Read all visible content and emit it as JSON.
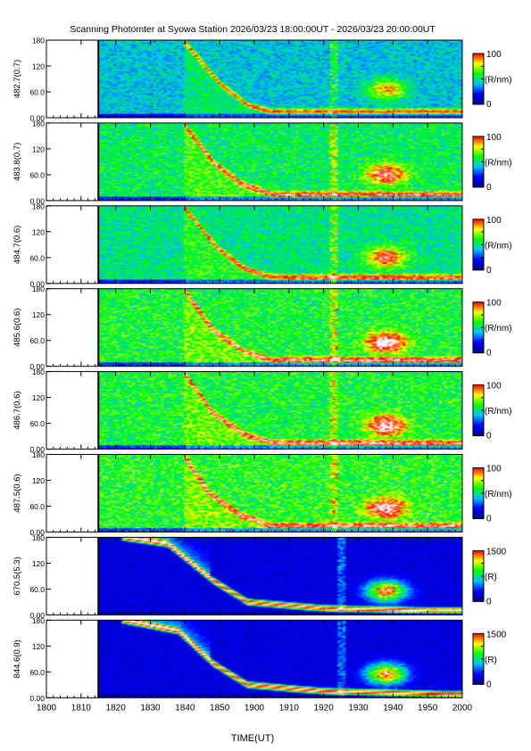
{
  "chart_data": {
    "type": "heatmap",
    "title": "Scanning Photomter at Syowa Station 2026/03/23 18:00:00UT - 2026/03/23 20:00:00UT",
    "xlabel": "TIME(UT)",
    "x_ticks": [
      "1800",
      "1810",
      "1820",
      "1830",
      "1840",
      "1850",
      "1900",
      "1910",
      "1920",
      "1930",
      "1940",
      "1950",
      "2000"
    ],
    "x_range": [
      "18:00",
      "20:00"
    ],
    "data_start": "18:15",
    "y_ticks": [
      "0.00",
      "60.0",
      "120",
      "180"
    ],
    "y_range": [
      0,
      180
    ],
    "colorscale": [
      "#000080",
      "#0000ff",
      "#00c0ff",
      "#00ff00",
      "#ffff00",
      "#ff0000",
      "#ffffff"
    ],
    "panels": [
      {
        "ylabel": "482.7(0.7)",
        "cbar_max": "100",
        "cbar_min": "0",
        "cbar_unit": "(R/nm)",
        "arc": [
          {
            "t": "18:40",
            "el": 175
          },
          {
            "t": "18:50",
            "el": 80
          },
          {
            "t": "18:58",
            "el": 30
          },
          {
            "t": "19:05",
            "el": 15
          }
        ],
        "patch": {
          "t": "19:38",
          "el": 65,
          "intensity": 0.55
        },
        "background_level": 0.35,
        "spike_time": "19:23"
      },
      {
        "ylabel": "483.8(0.7)",
        "cbar_max": "100",
        "cbar_min": "0",
        "cbar_unit": "(R/nm)",
        "arc": [
          {
            "t": "18:40",
            "el": 175
          },
          {
            "t": "18:48",
            "el": 90
          },
          {
            "t": "18:56",
            "el": 40
          },
          {
            "t": "19:05",
            "el": 15
          }
        ],
        "patch": {
          "t": "19:38",
          "el": 60,
          "intensity": 0.75
        },
        "background_level": 0.45,
        "spike_time": "19:23"
      },
      {
        "ylabel": "484.7(0.6)",
        "cbar_max": "100",
        "cbar_min": "0",
        "cbar_unit": "(R/nm)",
        "arc": [
          {
            "t": "18:40",
            "el": 175
          },
          {
            "t": "18:49",
            "el": 85
          },
          {
            "t": "18:57",
            "el": 35
          },
          {
            "t": "19:05",
            "el": 15
          }
        ],
        "patch": {
          "t": "19:38",
          "el": 60,
          "intensity": 0.65
        },
        "background_level": 0.42,
        "spike_time": "19:23"
      },
      {
        "ylabel": "485.6(0.6)",
        "cbar_max": "100",
        "cbar_min": "0",
        "cbar_unit": "(R/nm)",
        "arc": [
          {
            "t": "18:40",
            "el": 175
          },
          {
            "t": "18:48",
            "el": 85
          },
          {
            "t": "18:57",
            "el": 35
          },
          {
            "t": "19:05",
            "el": 15
          }
        ],
        "patch": {
          "t": "19:38",
          "el": 55,
          "intensity": 0.85
        },
        "background_level": 0.48,
        "spike_time": "19:23"
      },
      {
        "ylabel": "486.7(0.6)",
        "cbar_max": "100",
        "cbar_min": "0",
        "cbar_unit": "(R/nm)",
        "arc": [
          {
            "t": "18:40",
            "el": 175
          },
          {
            "t": "18:48",
            "el": 85
          },
          {
            "t": "18:57",
            "el": 35
          },
          {
            "t": "19:05",
            "el": 15
          }
        ],
        "patch": {
          "t": "19:38",
          "el": 55,
          "intensity": 0.8
        },
        "background_level": 0.48,
        "spike_time": "19:23"
      },
      {
        "ylabel": "487.5(0.6)",
        "cbar_max": "100",
        "cbar_min": "0",
        "cbar_unit": "(R/nm)",
        "arc": [
          {
            "t": "18:40",
            "el": 175
          },
          {
            "t": "18:47",
            "el": 90
          },
          {
            "t": "18:56",
            "el": 40
          },
          {
            "t": "19:05",
            "el": 15
          }
        ],
        "patch": {
          "t": "19:38",
          "el": 55,
          "intensity": 0.75
        },
        "background_level": 0.5,
        "spike_time": "19:23"
      },
      {
        "ylabel": "670.5(5.3)",
        "cbar_max": "1500",
        "cbar_min": "0",
        "cbar_unit": "(R)",
        "arc": [
          {
            "t": "18:22",
            "el": 180
          },
          {
            "t": "18:35",
            "el": 165
          },
          {
            "t": "18:48",
            "el": 80
          },
          {
            "t": "18:58",
            "el": 30
          },
          {
            "t": "19:20",
            "el": 15
          },
          {
            "t": "19:50",
            "el": 10
          }
        ],
        "patch": {
          "t": "19:38",
          "el": 55,
          "intensity": 1.0
        },
        "background_level": 0.12,
        "spike_time": "19:25"
      },
      {
        "ylabel": "844.6(0.9)",
        "cbar_max": "1500",
        "cbar_min": "0",
        "cbar_unit": "(R)",
        "arc": [
          {
            "t": "18:22",
            "el": 180
          },
          {
            "t": "18:38",
            "el": 155
          },
          {
            "t": "18:48",
            "el": 80
          },
          {
            "t": "18:58",
            "el": 30
          },
          {
            "t": "19:20",
            "el": 15
          },
          {
            "t": "19:55",
            "el": 8
          }
        ],
        "patch": {
          "t": "19:38",
          "el": 55,
          "intensity": 1.0
        },
        "background_level": 0.12,
        "spike_time": "19:25"
      }
    ]
  }
}
